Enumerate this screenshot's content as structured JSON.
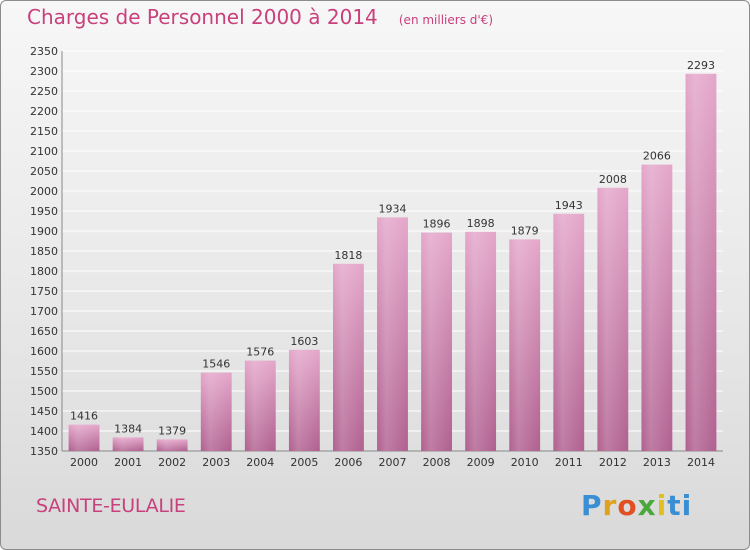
{
  "header": {
    "title": "Charges de Personnel 2000 à 2014",
    "subtitle": "(en milliers d'€)"
  },
  "footer": {
    "commune": "SAINTE-EULALIE",
    "logo_parts": [
      "P",
      "r",
      "o",
      "x",
      "i",
      "ti"
    ]
  },
  "colors": {
    "bar_light": "#e4a6ca",
    "bar_dark": "#b0608f",
    "text_accent": "#c8407c"
  },
  "chart_data": {
    "type": "bar",
    "title": "Charges de Personnel 2000 à 2014",
    "subtitle": "(en milliers d'€)",
    "categories": [
      "2000",
      "2001",
      "2002",
      "2003",
      "2004",
      "2005",
      "2006",
      "2007",
      "2008",
      "2009",
      "2010",
      "2011",
      "2012",
      "2013",
      "2014"
    ],
    "values": [
      1416,
      1384,
      1379,
      1546,
      1576,
      1603,
      1818,
      1934,
      1896,
      1898,
      1879,
      1943,
      2008,
      2066,
      2293
    ],
    "ylim": [
      1350,
      2350
    ],
    "yticks": [
      1350,
      1400,
      1450,
      1500,
      1550,
      1600,
      1650,
      1700,
      1750,
      1800,
      1850,
      1900,
      1950,
      2000,
      2050,
      2100,
      2150,
      2200,
      2250,
      2300,
      2350
    ],
    "grid": true,
    "legend": "none"
  }
}
